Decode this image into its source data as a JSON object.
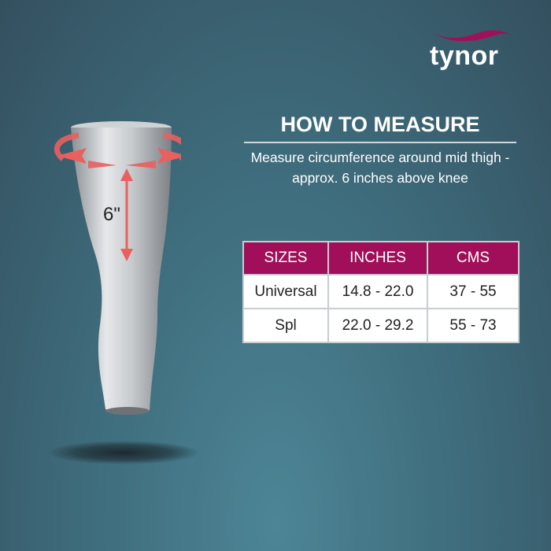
{
  "brand": {
    "logo_text": "tynor",
    "accent": "#a10f5a"
  },
  "title": "HOW TO MEASURE",
  "description": "Measure circumference around mid thigh - approx. 6 inches above knee",
  "measure_label": "6\"",
  "table": {
    "headers": [
      "SIZES",
      "INCHES",
      "CMS"
    ],
    "rows": [
      [
        "Universal",
        "14.8 - 22.0",
        "37 - 55"
      ],
      [
        "Spl",
        "22.0 - 29.2",
        "55 - 73"
      ]
    ]
  }
}
